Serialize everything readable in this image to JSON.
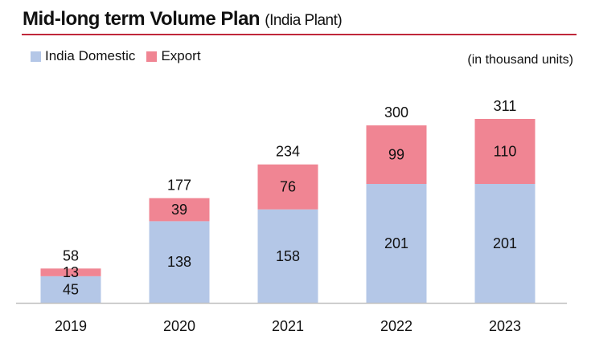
{
  "chart_data": {
    "type": "bar",
    "stacked": true,
    "title": "Mid-long term Volume Plan",
    "subtitle": "(India Plant)",
    "units_note": "(in thousand units)",
    "categories": [
      "2019",
      "2020",
      "2021",
      "2022",
      "2023"
    ],
    "series": [
      {
        "name": "India Domestic",
        "values": [
          45,
          138,
          158,
          201,
          201
        ],
        "color": "#b4c7e7"
      },
      {
        "name": "Export",
        "values": [
          13,
          39,
          76,
          99,
          110
        ],
        "color": "#f08593"
      }
    ],
    "totals": [
      58,
      177,
      234,
      300,
      311
    ],
    "legend": "top-left",
    "grid": false,
    "ylim": [
      0,
      330
    ]
  }
}
